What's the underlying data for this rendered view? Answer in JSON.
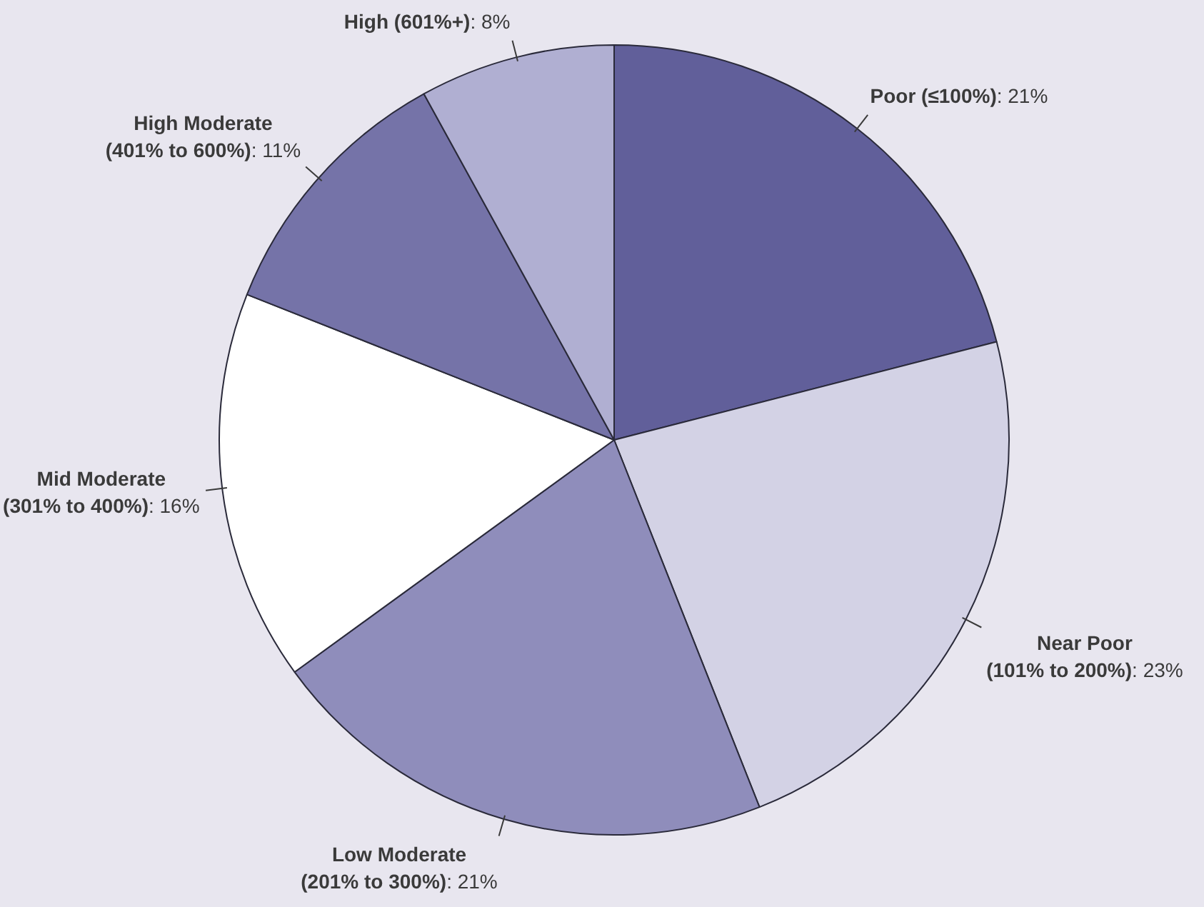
{
  "chart_data": {
    "type": "pie",
    "categories": [
      "Poor (≤100%)",
      "Near Poor (101% to 200%)",
      "Low Moderate (201% to 300%)",
      "Mid Moderate (301% to 400%)",
      "High Moderate (401% to 600%)",
      "High (601%+)"
    ],
    "values": [
      21,
      23,
      21,
      16,
      11,
      8
    ],
    "value_labels": [
      ": 21%",
      ": 23%",
      ": 21%",
      ": 16%",
      ": 11%",
      ": 8%"
    ],
    "colors": [
      "#615f9a",
      "#d3d2e5",
      "#8f8dbb",
      "#ffffff",
      "#7573a8",
      "#b0afd2"
    ],
    "legend": false
  }
}
